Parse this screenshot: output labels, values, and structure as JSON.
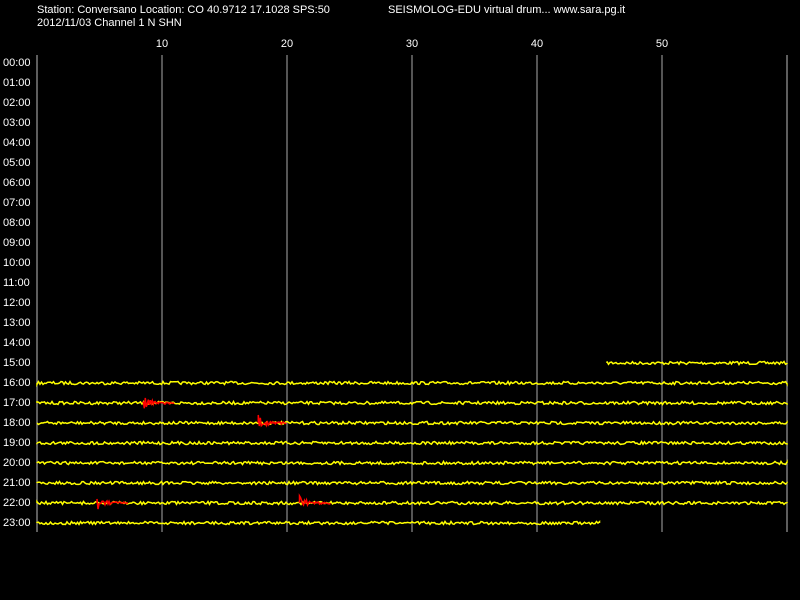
{
  "chart_data": {
    "type": "helicorder",
    "title": "Station: Conversano Location: CO 40.9712 17.1028 SPS:50",
    "subtitle": "SEISMOLOG-EDU virtual drum... www.sara.pg.it",
    "date_channel": "2012/11/03  Channel 1 N SHN",
    "categories": [
      "00:00",
      "01:00",
      "02:00",
      "03:00",
      "04:00",
      "05:00",
      "06:00",
      "07:00",
      "08:00",
      "09:00",
      "10:00",
      "11:00",
      "12:00",
      "13:00",
      "14:00",
      "15:00",
      "16:00",
      "17:00",
      "18:00",
      "19:00",
      "20:00",
      "21:00",
      "22:00",
      "23:00"
    ],
    "trace_start": [
      null,
      null,
      null,
      null,
      null,
      null,
      null,
      null,
      null,
      null,
      null,
      null,
      null,
      null,
      null,
      45.6,
      0,
      0,
      0,
      0,
      0,
      0,
      0,
      0
    ],
    "trace_end": [
      null,
      null,
      null,
      null,
      null,
      null,
      null,
      null,
      null,
      null,
      null,
      null,
      null,
      null,
      null,
      60,
      60,
      60,
      60,
      60,
      60,
      60,
      60,
      45
    ],
    "events": [
      {
        "row": "17:00",
        "start": 8.5,
        "end": 11
      },
      {
        "row": "18:00",
        "start": 17.7,
        "end": 20
      },
      {
        "row": "22:00",
        "start": 4.8,
        "end": 7.3
      },
      {
        "row": "22:00",
        "start": 21,
        "end": 23.5
      }
    ],
    "xlim": [
      0,
      60
    ],
    "xticks": [
      10,
      20,
      30,
      40,
      50
    ],
    "grid": true,
    "trace_color": "#ffff00",
    "event_color": "#ff0000"
  }
}
